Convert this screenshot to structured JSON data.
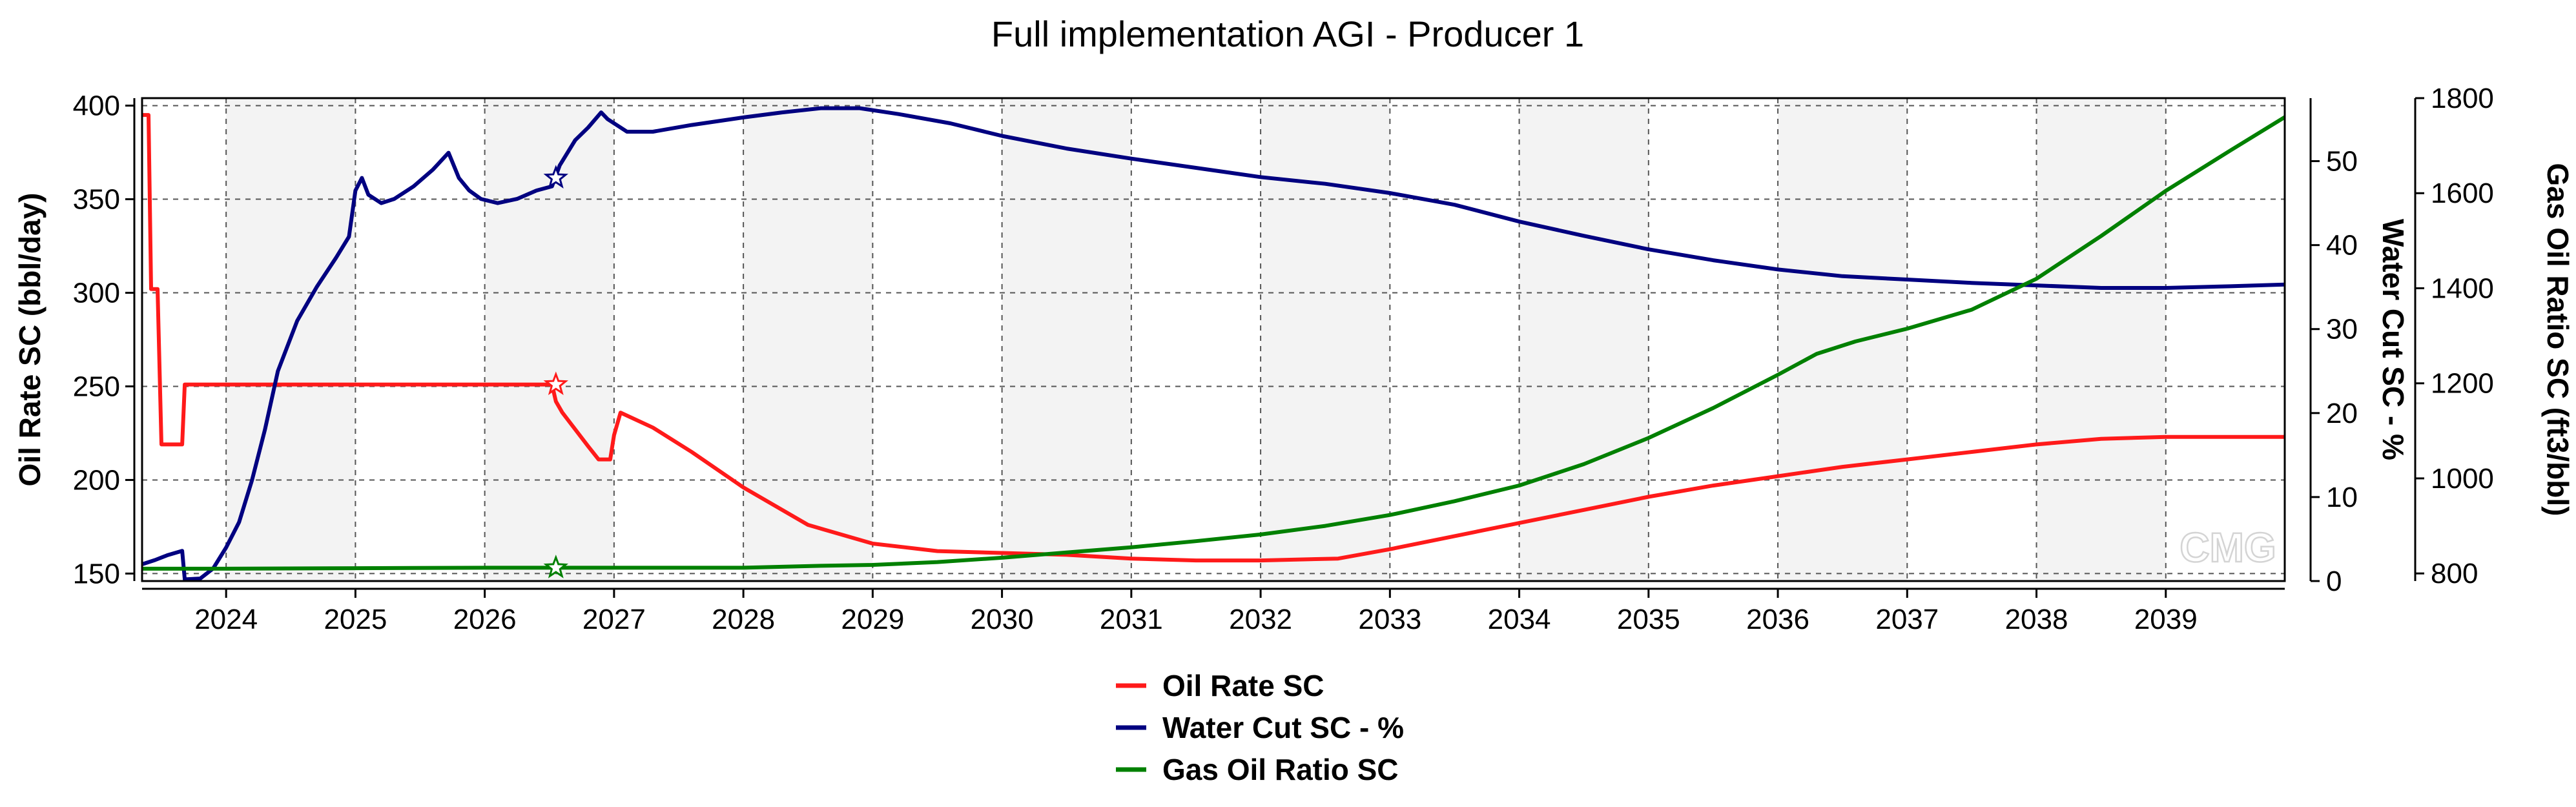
{
  "chart_data": {
    "type": "line",
    "title": "Full implementation AGI - Producer 1",
    "watermark": "CMG",
    "x_axis": {
      "min": 2023.35,
      "max": 2039.92,
      "ticks": [
        2024,
        2025,
        2026,
        2027,
        2028,
        2029,
        2030,
        2031,
        2032,
        2033,
        2034,
        2035,
        2036,
        2037,
        2038,
        2039
      ],
      "tick_labels": [
        "2024",
        "2025",
        "2026",
        "2027",
        "2028",
        "2029",
        "2030",
        "2031",
        "2032",
        "2033",
        "2034",
        "2035",
        "2036",
        "2037",
        "2038",
        "2039"
      ],
      "alternating_year_bands": true
    },
    "y_axes": [
      {
        "id": "oil",
        "label": "Oil Rate SC (bbl/day)",
        "position": "left",
        "min": 146,
        "max": 404,
        "ticks": [
          150,
          200,
          250,
          300,
          350,
          400
        ],
        "tick_labels": [
          "150",
          "200",
          "250",
          "300",
          "350",
          "400"
        ]
      },
      {
        "id": "wc",
        "label": "Water Cut SC - %",
        "position": "right",
        "min": 0,
        "max": 57.5,
        "ticks": [
          0,
          10,
          20,
          30,
          40,
          50
        ],
        "tick_labels": [
          "0",
          "10",
          "20",
          "30",
          "40",
          "50"
        ]
      },
      {
        "id": "gor",
        "label": "Gas Oil Ratio SC (ft3/bbl)",
        "position": "right-outer",
        "min": 784,
        "max": 1800,
        "ticks": [
          800,
          1000,
          1200,
          1400,
          1600,
          1800
        ],
        "tick_labels": [
          "800",
          "1000",
          "1200",
          "1400",
          "1600",
          "1800"
        ]
      }
    ],
    "grid": true,
    "legend_position": "bottom-center",
    "series": [
      {
        "name": "Oil Rate SC",
        "axis": "oil",
        "color": "#ff1a1a",
        "marker_at": [
          2026.55,
          251
        ],
        "points": [
          [
            2023.35,
            395
          ],
          [
            2023.4,
            395
          ],
          [
            2023.42,
            302
          ],
          [
            2023.47,
            302
          ],
          [
            2023.5,
            219
          ],
          [
            2023.66,
            219
          ],
          [
            2023.68,
            251
          ],
          [
            2026.52,
            251
          ],
          [
            2026.55,
            242
          ],
          [
            2026.6,
            236
          ],
          [
            2026.7,
            227
          ],
          [
            2026.8,
            218
          ],
          [
            2026.88,
            211
          ],
          [
            2026.97,
            211
          ],
          [
            2027.0,
            224
          ],
          [
            2027.05,
            236
          ],
          [
            2027.3,
            228
          ],
          [
            2027.6,
            215
          ],
          [
            2028.0,
            196
          ],
          [
            2028.5,
            176
          ],
          [
            2029.0,
            166
          ],
          [
            2029.5,
            162
          ],
          [
            2030.0,
            161
          ],
          [
            2030.5,
            160
          ],
          [
            2031.0,
            158
          ],
          [
            2031.5,
            157
          ],
          [
            2032.0,
            157
          ],
          [
            2032.6,
            158
          ],
          [
            2033.0,
            163
          ],
          [
            2033.5,
            170
          ],
          [
            2034.0,
            177
          ],
          [
            2034.5,
            184
          ],
          [
            2035.0,
            191
          ],
          [
            2035.5,
            197
          ],
          [
            2036.0,
            202
          ],
          [
            2036.5,
            207
          ],
          [
            2037.0,
            211
          ],
          [
            2037.5,
            215
          ],
          [
            2038.0,
            219
          ],
          [
            2038.5,
            222
          ],
          [
            2039.0,
            223
          ],
          [
            2039.92,
            223
          ]
        ]
      },
      {
        "name": "Water Cut SC - %",
        "axis": "wc",
        "color": "#000080",
        "marker_at": [
          2026.55,
          48
        ],
        "points": [
          [
            2023.35,
            2.0
          ],
          [
            2023.45,
            2.5
          ],
          [
            2023.55,
            3.1
          ],
          [
            2023.66,
            3.6
          ],
          [
            2023.68,
            0.2
          ],
          [
            2023.8,
            0.3
          ],
          [
            2023.9,
            1.5
          ],
          [
            2024.0,
            4.0
          ],
          [
            2024.1,
            7.0
          ],
          [
            2024.2,
            12.0
          ],
          [
            2024.3,
            18.0
          ],
          [
            2024.4,
            25.0
          ],
          [
            2024.55,
            31.0
          ],
          [
            2024.7,
            35.0
          ],
          [
            2024.85,
            38.5
          ],
          [
            2024.95,
            41.0
          ],
          [
            2025.0,
            46.5
          ],
          [
            2025.05,
            48.0
          ],
          [
            2025.1,
            46.0
          ],
          [
            2025.2,
            45.0
          ],
          [
            2025.3,
            45.5
          ],
          [
            2025.45,
            47.0
          ],
          [
            2025.6,
            49.0
          ],
          [
            2025.72,
            51.0
          ],
          [
            2025.8,
            48.0
          ],
          [
            2025.88,
            46.5
          ],
          [
            2025.97,
            45.5
          ],
          [
            2026.1,
            45.0
          ],
          [
            2026.25,
            45.5
          ],
          [
            2026.4,
            46.5
          ],
          [
            2026.52,
            47.0
          ],
          [
            2026.58,
            49.5
          ],
          [
            2026.7,
            52.5
          ],
          [
            2026.8,
            54.0
          ],
          [
            2026.9,
            55.8
          ],
          [
            2026.95,
            55.0
          ],
          [
            2027.1,
            53.5
          ],
          [
            2027.3,
            53.5
          ],
          [
            2027.6,
            54.3
          ],
          [
            2028.0,
            55.2
          ],
          [
            2028.3,
            55.8
          ],
          [
            2028.6,
            56.3
          ],
          [
            2028.9,
            56.3
          ],
          [
            2029.2,
            55.6
          ],
          [
            2029.6,
            54.5
          ],
          [
            2030.0,
            53.0
          ],
          [
            2030.5,
            51.5
          ],
          [
            2031.0,
            50.3
          ],
          [
            2031.5,
            49.2
          ],
          [
            2032.0,
            48.1
          ],
          [
            2032.5,
            47.3
          ],
          [
            2033.0,
            46.2
          ],
          [
            2033.5,
            44.8
          ],
          [
            2034.0,
            42.8
          ],
          [
            2034.5,
            41.1
          ],
          [
            2035.0,
            39.5
          ],
          [
            2035.5,
            38.2
          ],
          [
            2036.0,
            37.1
          ],
          [
            2036.5,
            36.3
          ],
          [
            2037.0,
            35.9
          ],
          [
            2037.5,
            35.5
          ],
          [
            2038.0,
            35.2
          ],
          [
            2038.5,
            34.9
          ],
          [
            2039.0,
            34.9
          ],
          [
            2039.5,
            35.1
          ],
          [
            2039.92,
            35.3
          ]
        ]
      },
      {
        "name": "Gas Oil Ratio SC",
        "axis": "gor",
        "color": "#008000",
        "marker_at": [
          2026.55,
          812
        ],
        "points": [
          [
            2023.35,
            810
          ],
          [
            2024.0,
            810
          ],
          [
            2025.0,
            811
          ],
          [
            2026.0,
            812
          ],
          [
            2027.0,
            812
          ],
          [
            2028.0,
            812
          ],
          [
            2028.6,
            816
          ],
          [
            2029.0,
            818
          ],
          [
            2029.5,
            824
          ],
          [
            2030.0,
            833
          ],
          [
            2030.5,
            844
          ],
          [
            2031.0,
            855
          ],
          [
            2031.5,
            868
          ],
          [
            2032.0,
            882
          ],
          [
            2032.5,
            900
          ],
          [
            2033.0,
            923
          ],
          [
            2033.5,
            952
          ],
          [
            2034.0,
            985
          ],
          [
            2034.5,
            1030
          ],
          [
            2035.0,
            1085
          ],
          [
            2035.5,
            1148
          ],
          [
            2036.0,
            1218
          ],
          [
            2036.3,
            1262
          ],
          [
            2036.6,
            1288
          ],
          [
            2037.0,
            1315
          ],
          [
            2037.5,
            1355
          ],
          [
            2038.0,
            1420
          ],
          [
            2038.5,
            1510
          ],
          [
            2039.0,
            1605
          ],
          [
            2039.5,
            1690
          ],
          [
            2039.92,
            1760
          ]
        ]
      }
    ]
  }
}
